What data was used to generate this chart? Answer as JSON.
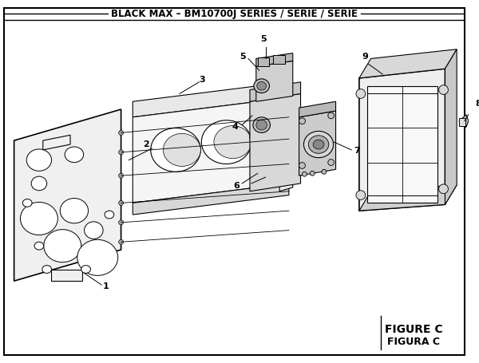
{
  "title": "BLACK MAX – BM10700J SERIES / SÉRIE / SERIE",
  "figure_label": "FIGURE C",
  "figura_label": "FIGURA C",
  "bg_color": "#ffffff",
  "line_color": "#000000",
  "title_fontsize": 8.5,
  "figure_label_fontsize": 10
}
